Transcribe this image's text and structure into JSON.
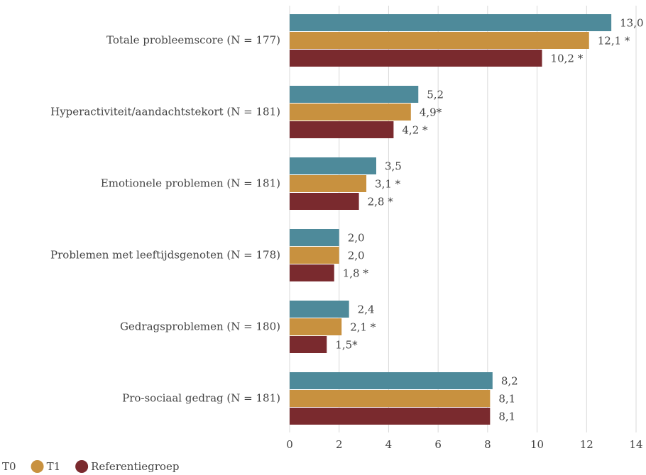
{
  "chart_data": {
    "type": "bar",
    "orientation": "horizontal",
    "categories": [
      "Totale probleemscore (N = 177)",
      "Hyperactiviteit/aandachtstekort (N = 181)",
      "Emotionele problemen (N = 181)",
      "Problemen met leeftijdsgenoten (N = 178)",
      "Gedragsproblemen (N = 180)",
      "Pro-sociaal gedrag (N = 181)"
    ],
    "series": [
      {
        "name": "T0",
        "color": "#4e8a9a",
        "values": [
          13.0,
          5.2,
          3.5,
          2.0,
          2.4,
          8.2
        ],
        "value_labels": [
          "13,0",
          "5,2",
          "3,5",
          "2,0",
          "2,4",
          "8,2"
        ]
      },
      {
        "name": "T1",
        "color": "#c8913f",
        "values": [
          12.1,
          4.9,
          3.1,
          2.0,
          2.1,
          8.1
        ],
        "value_labels": [
          "12,1 *",
          "4,9*",
          "3,1 *",
          "2,0",
          "2,1 *",
          "8,1"
        ]
      },
      {
        "name": "Referentiegroep",
        "color": "#7a2a2e",
        "values": [
          10.2,
          4.2,
          2.8,
          1.8,
          1.5,
          8.1
        ],
        "value_labels": [
          "10,2 *",
          "4,2 *",
          "2,8 *",
          "1,8 *",
          "1,5*",
          "8,1"
        ]
      }
    ],
    "xlim": [
      0,
      14
    ],
    "xticks": [
      0,
      2,
      4,
      6,
      8,
      10,
      12,
      14
    ],
    "grid": true,
    "legend": "bottom-left"
  }
}
